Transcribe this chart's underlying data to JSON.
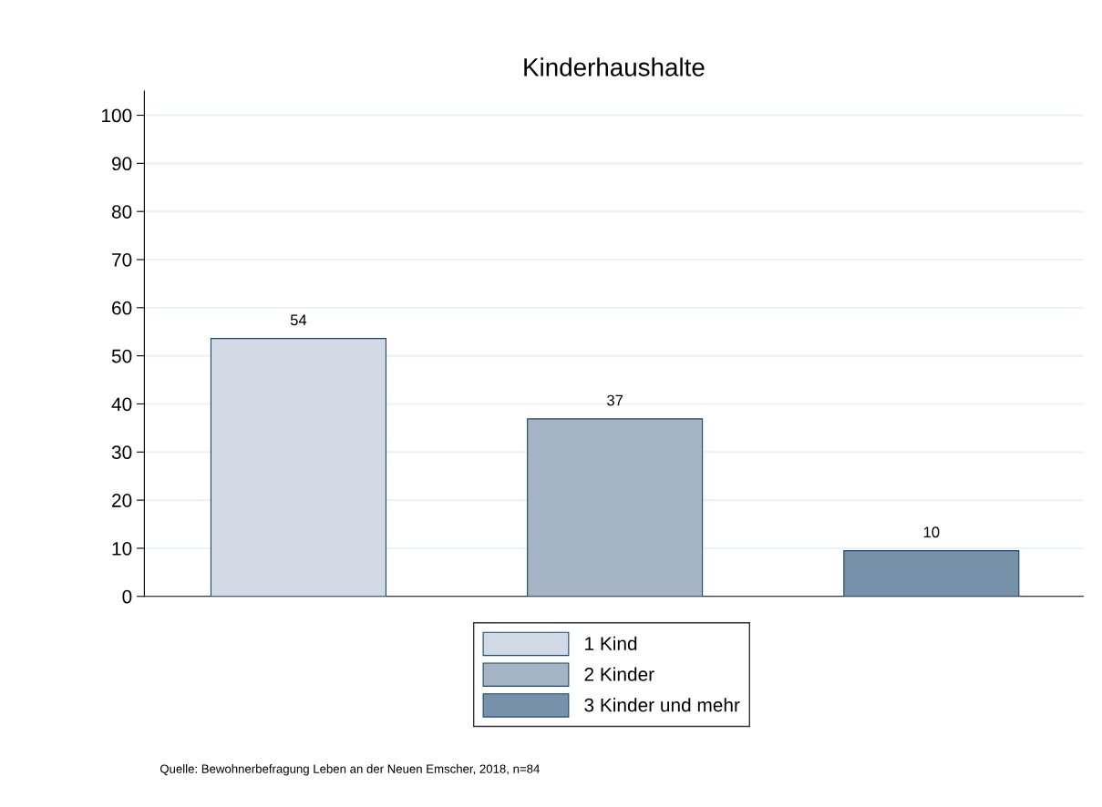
{
  "chart_data": {
    "type": "bar",
    "title": "Kinderhaushalte",
    "categories": [
      null
    ],
    "series": [
      {
        "name": "1 Kind",
        "color": "#d1dae4",
        "values": [
          53.6
        ],
        "value_labels": [
          "54"
        ]
      },
      {
        "name": "2 Kinder",
        "color": "#a4b4c5",
        "values": [
          36.9
        ],
        "value_labels": [
          "37"
        ]
      },
      {
        "name": "3 Kinder und mehr",
        "color": "#7891aa",
        "values": [
          9.5
        ],
        "value_labels": [
          "10"
        ]
      }
    ],
    "ylim": [
      0,
      105
    ],
    "yticks": [
      0,
      10,
      20,
      30,
      40,
      50,
      60,
      70,
      80,
      90,
      100
    ],
    "grid": "y",
    "legend": "bottom",
    "tick_labels": "y",
    "annotations": [
      "Quelle: Bewohnerbefragung Leben an der Neuen Emscher, 2018, n=84"
    ]
  }
}
